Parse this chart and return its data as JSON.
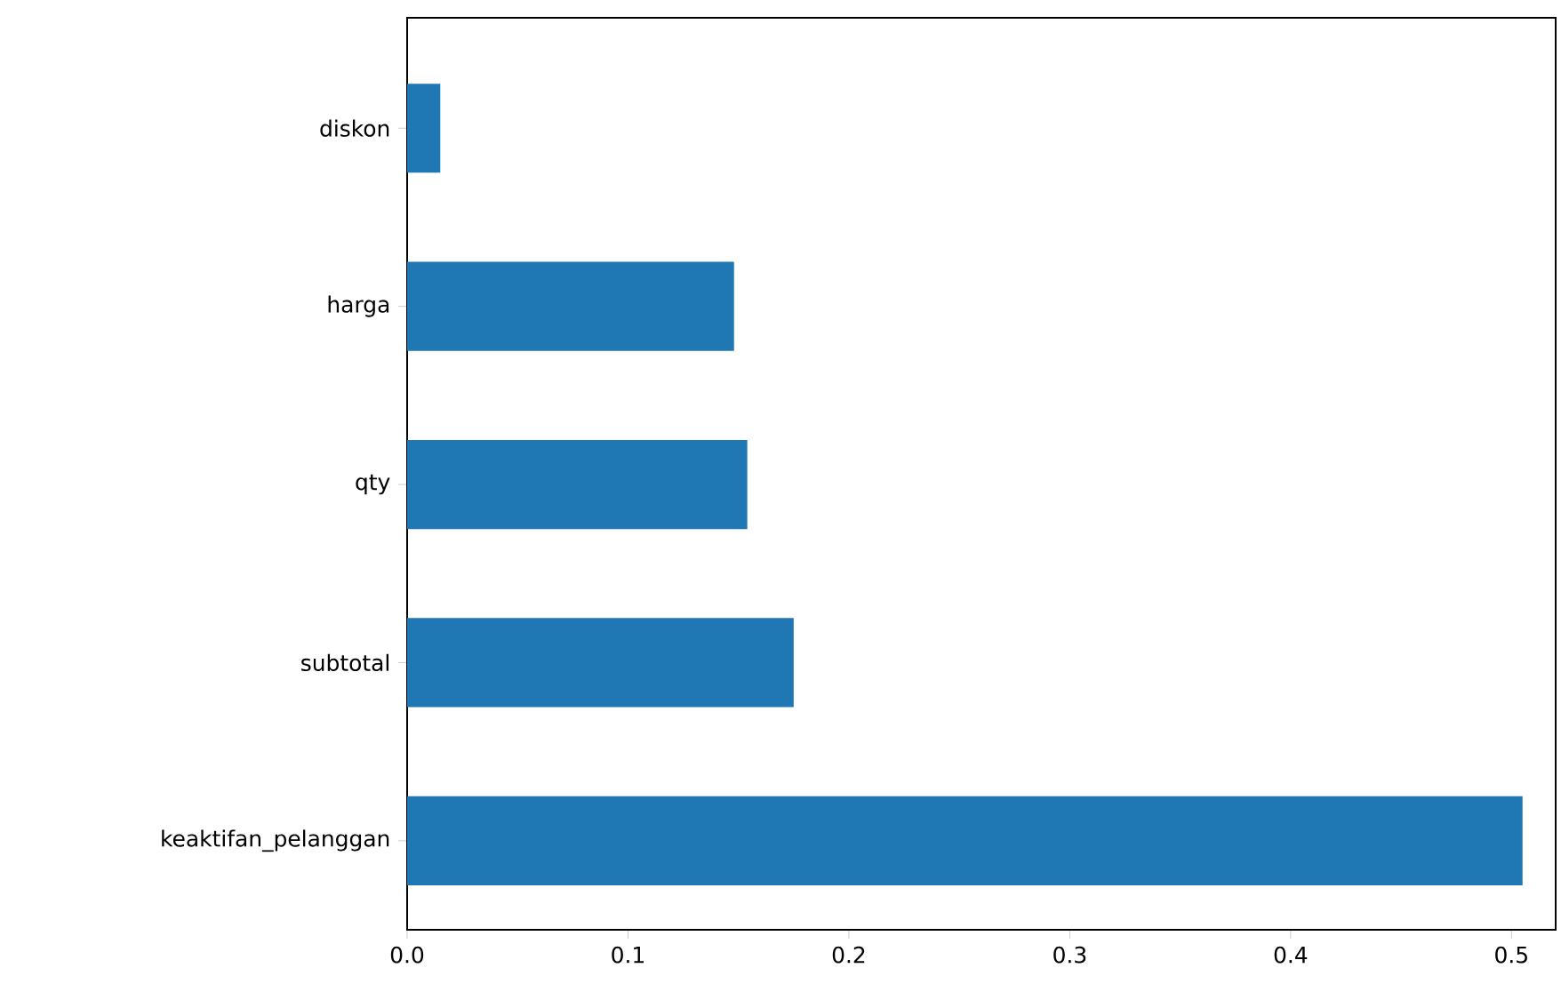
{
  "chart_data": {
    "type": "bar",
    "orientation": "horizontal",
    "categories": [
      "diskon",
      "harga",
      "qty",
      "subtotal",
      "keaktifan_pelanggan"
    ],
    "values": [
      0.015,
      0.148,
      0.154,
      0.175,
      0.505
    ],
    "color": "#1f77b4",
    "xlim": [
      0,
      0.52
    ],
    "xticks": [
      {
        "value": 0,
        "label": "0.0"
      },
      {
        "value": 0.1,
        "label": "0.1"
      },
      {
        "value": 0.2,
        "label": "0.2"
      },
      {
        "value": 0.3,
        "label": "0.3"
      },
      {
        "value": 0.4,
        "label": "0.4"
      },
      {
        "value": 0.5,
        "label": "0.5"
      }
    ]
  }
}
